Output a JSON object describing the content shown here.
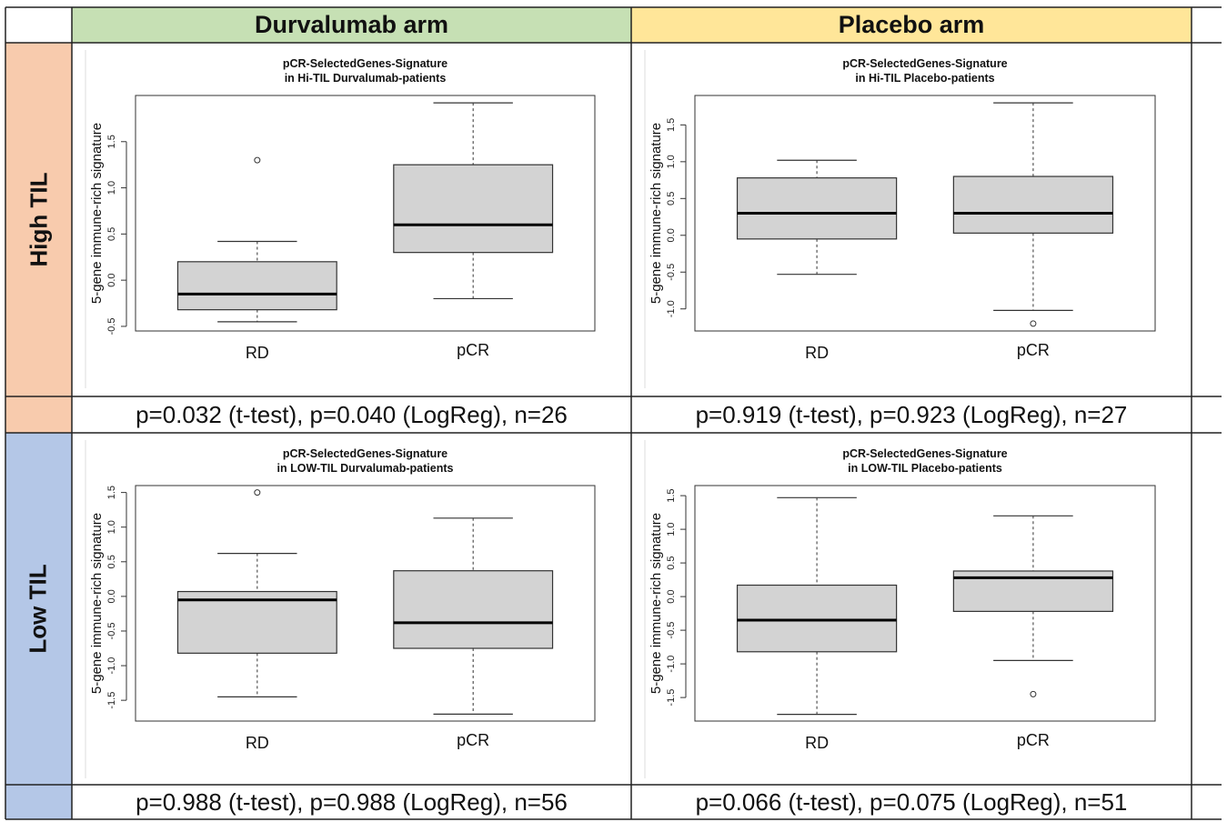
{
  "colors": {
    "durvalumab_header": "#c6e0b4",
    "placebo_header": "#ffe699",
    "high_til_row": "#f8cbad",
    "low_til_row": "#b4c7e7",
    "box_fill": "#d3d3d3"
  },
  "headers": {
    "durvalumab": "Durvalumab arm",
    "placebo": "Placebo arm"
  },
  "rows": {
    "high": "High TIL",
    "low": "Low TIL"
  },
  "pvalues": {
    "high_durv": "p=0.032 (t-test), p=0.040 (LogReg), n=26",
    "high_plac": "p=0.919 (t-test), p=0.923 (LogReg), n=27",
    "low_durv": "p=0.988 (t-test), p=0.988 (LogReg), n=56",
    "low_plac": "p=0.066 (t-test), p=0.075 (LogReg), n=51"
  },
  "chart_data": [
    {
      "type": "boxplot",
      "title": [
        "pCR-SelectedGenes-Signature",
        "in Hi-TIL Durvalumab-patients"
      ],
      "ylabel": "5-gene immune-rich signature",
      "categories": [
        "RD",
        "pCR"
      ],
      "yticks": [
        "-0.5",
        "0.0",
        "0.5",
        "1.0",
        "1.5"
      ],
      "ylim": [
        -0.55,
        2.0
      ],
      "boxes": [
        {
          "name": "RD",
          "whisker_low": -0.45,
          "q1": -0.32,
          "median": -0.15,
          "q3": 0.2,
          "whisker_high": 0.42,
          "outliers": [
            1.3
          ]
        },
        {
          "name": "pCR",
          "whisker_low": -0.2,
          "q1": 0.3,
          "median": 0.6,
          "q3": 1.25,
          "whisker_high": 1.92,
          "outliers": []
        }
      ]
    },
    {
      "type": "boxplot",
      "title": [
        "pCR-SelectedGenes-Signature",
        "in Hi-TIL Placebo-patients"
      ],
      "ylabel": "5-gene immune-rich signature",
      "categories": [
        "RD",
        "pCR"
      ],
      "yticks": [
        "-1.0",
        "-0.5",
        "0.0",
        "0.5",
        "1.0",
        "1.5"
      ],
      "ylim": [
        -1.3,
        1.9
      ],
      "boxes": [
        {
          "name": "RD",
          "whisker_low": -0.53,
          "q1": -0.05,
          "median": 0.3,
          "q3": 0.78,
          "whisker_high": 1.02,
          "outliers": []
        },
        {
          "name": "pCR",
          "whisker_low": -1.02,
          "q1": 0.03,
          "median": 0.3,
          "q3": 0.8,
          "whisker_high": 1.8,
          "outliers": [
            -1.2
          ]
        }
      ]
    },
    {
      "type": "boxplot",
      "title": [
        "pCR-SelectedGenes-Signature",
        "in LOW-TIL Durvalumab-patients"
      ],
      "ylabel": "5-gene immune-rich signature",
      "categories": [
        "RD",
        "pCR"
      ],
      "yticks": [
        "-1.5",
        "-1.0",
        "-0.5",
        "0.0",
        "0.5",
        "1.0",
        "1.5"
      ],
      "ylim": [
        -1.8,
        1.6
      ],
      "boxes": [
        {
          "name": "RD",
          "whisker_low": -1.45,
          "q1": -0.82,
          "median": -0.05,
          "q3": 0.07,
          "whisker_high": 0.62,
          "outliers": [
            1.5
          ]
        },
        {
          "name": "pCR",
          "whisker_low": -1.7,
          "q1": -0.75,
          "median": -0.38,
          "q3": 0.37,
          "whisker_high": 1.13,
          "outliers": []
        }
      ]
    },
    {
      "type": "boxplot",
      "title": [
        "pCR-SelectedGenes-Signature",
        "in LOW-TIL Placebo-patients"
      ],
      "ylabel": "5-gene immune-rich signature",
      "categories": [
        "RD",
        "pCR"
      ],
      "yticks": [
        "-1.5",
        "-1.0",
        "-0.5",
        "0.0",
        "0.5",
        "1.0",
        "1.5"
      ],
      "ylim": [
        -1.85,
        1.65
      ],
      "boxes": [
        {
          "name": "RD",
          "whisker_low": -1.75,
          "q1": -0.82,
          "median": -0.35,
          "q3": 0.17,
          "whisker_high": 1.47,
          "outliers": []
        },
        {
          "name": "pCR",
          "whisker_low": -0.95,
          "q1": -0.22,
          "median": 0.28,
          "q3": 0.38,
          "whisker_high": 1.2,
          "outliers": [
            -1.45
          ]
        }
      ]
    }
  ]
}
